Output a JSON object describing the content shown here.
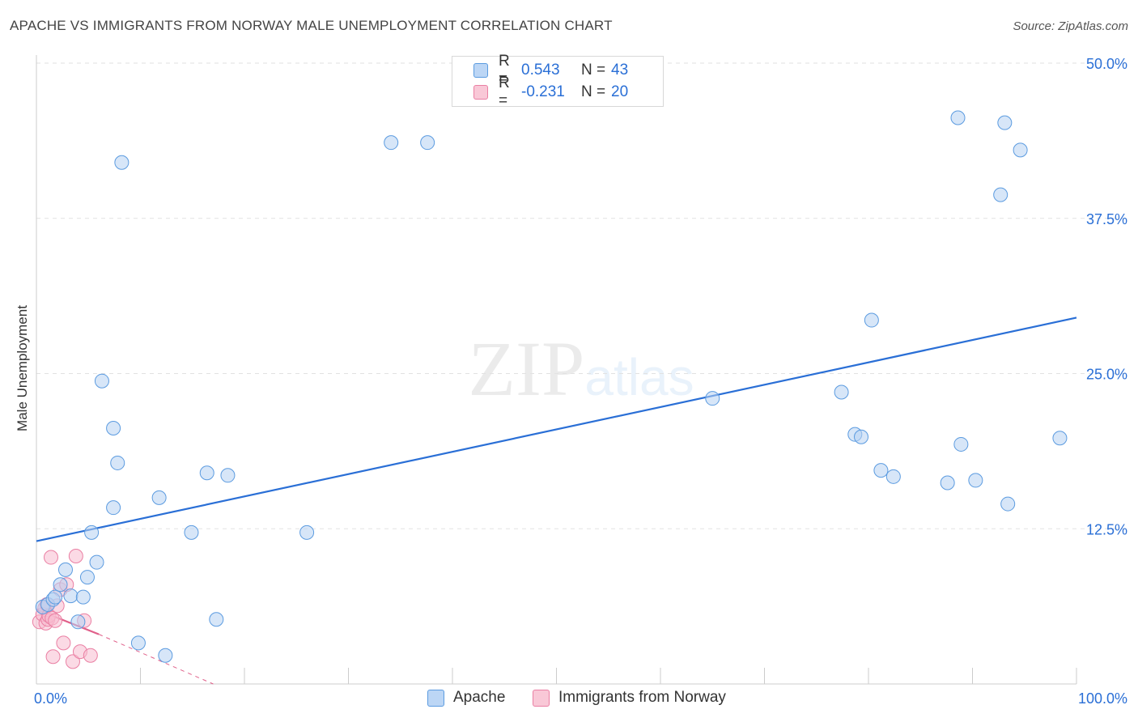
{
  "chart_data": {
    "type": "scatter",
    "title": "APACHE VS IMMIGRANTS FROM NORWAY MALE UNEMPLOYMENT CORRELATION CHART",
    "source": "Source: ZipAtlas.com",
    "ylabel": "Male Unemployment",
    "xlabel": "",
    "xlim": [
      0,
      100
    ],
    "ylim": [
      0,
      50
    ],
    "x_tick_labels": [
      "0.0%",
      "100.0%"
    ],
    "y_ticks": [
      12.5,
      25.0,
      37.5,
      50.0
    ],
    "y_tick_labels": [
      "12.5%",
      "25.0%",
      "37.5%",
      "50.0%"
    ],
    "watermark": "ZIPatlas",
    "colors": {
      "apache": "#5b9be0",
      "norway": "#ea7fa3",
      "apache_line": "#2a6fd6",
      "norway_line": "#e0608a",
      "tick_text": "#2a6fd6"
    },
    "legend": [
      {
        "r_label": "R =",
        "r_value": "0.543",
        "n_label": "N =",
        "n_value": "43"
      },
      {
        "r_label": "R =",
        "r_value": "-0.231",
        "n_label": "N =",
        "n_value": "20"
      }
    ],
    "series": [
      {
        "name": "Apache",
        "points": [
          [
            0.6,
            6.2
          ],
          [
            1.1,
            6.4
          ],
          [
            1.6,
            6.8
          ],
          [
            1.8,
            7.0
          ],
          [
            2.3,
            8.0
          ],
          [
            2.8,
            9.2
          ],
          [
            3.3,
            7.1
          ],
          [
            4.0,
            5.0
          ],
          [
            4.5,
            7.0
          ],
          [
            4.9,
            8.6
          ],
          [
            5.3,
            12.2
          ],
          [
            5.8,
            9.8
          ],
          [
            6.3,
            24.4
          ],
          [
            7.4,
            14.2
          ],
          [
            7.4,
            20.6
          ],
          [
            7.8,
            17.8
          ],
          [
            8.2,
            42.0
          ],
          [
            9.8,
            3.3
          ],
          [
            11.8,
            15.0
          ],
          [
            12.4,
            2.3
          ],
          [
            14.9,
            12.2
          ],
          [
            16.4,
            17.0
          ],
          [
            17.3,
            5.2
          ],
          [
            18.4,
            16.8
          ],
          [
            26.0,
            12.2
          ],
          [
            34.1,
            43.6
          ],
          [
            37.6,
            43.6
          ],
          [
            65.0,
            23.0
          ],
          [
            77.4,
            23.5
          ],
          [
            78.7,
            20.1
          ],
          [
            79.3,
            19.9
          ],
          [
            80.3,
            29.3
          ],
          [
            81.2,
            17.2
          ],
          [
            82.4,
            16.7
          ],
          [
            87.6,
            16.2
          ],
          [
            88.6,
            45.6
          ],
          [
            88.9,
            19.3
          ],
          [
            90.3,
            16.4
          ],
          [
            92.7,
            39.4
          ],
          [
            93.1,
            45.2
          ],
          [
            93.4,
            14.5
          ],
          [
            94.6,
            43.0
          ],
          [
            98.4,
            19.8
          ]
        ],
        "trend": {
          "x": [
            0,
            100
          ],
          "y": [
            11.5,
            29.5
          ]
        }
      },
      {
        "name": "Immigrants from Norway",
        "points": [
          [
            0.3,
            5.0
          ],
          [
            0.6,
            5.6
          ],
          [
            0.8,
            6.1
          ],
          [
            0.9,
            4.9
          ],
          [
            1.0,
            6.4
          ],
          [
            1.1,
            5.2
          ],
          [
            1.2,
            5.5
          ],
          [
            1.4,
            10.2
          ],
          [
            1.5,
            5.3
          ],
          [
            1.6,
            2.2
          ],
          [
            1.8,
            5.1
          ],
          [
            2.0,
            6.3
          ],
          [
            2.3,
            7.6
          ],
          [
            2.6,
            3.3
          ],
          [
            3.5,
            1.8
          ],
          [
            3.8,
            10.3
          ],
          [
            4.2,
            2.6
          ],
          [
            4.6,
            5.1
          ],
          [
            5.2,
            2.3
          ],
          [
            2.9,
            8.0
          ]
        ],
        "trend": {
          "x": [
            0,
            6.0
          ],
          "y": [
            6.0,
            4.0
          ]
        },
        "trend_dashed": {
          "x": [
            6.0,
            17.0
          ],
          "y": [
            4.0,
            0.0
          ]
        }
      }
    ]
  }
}
